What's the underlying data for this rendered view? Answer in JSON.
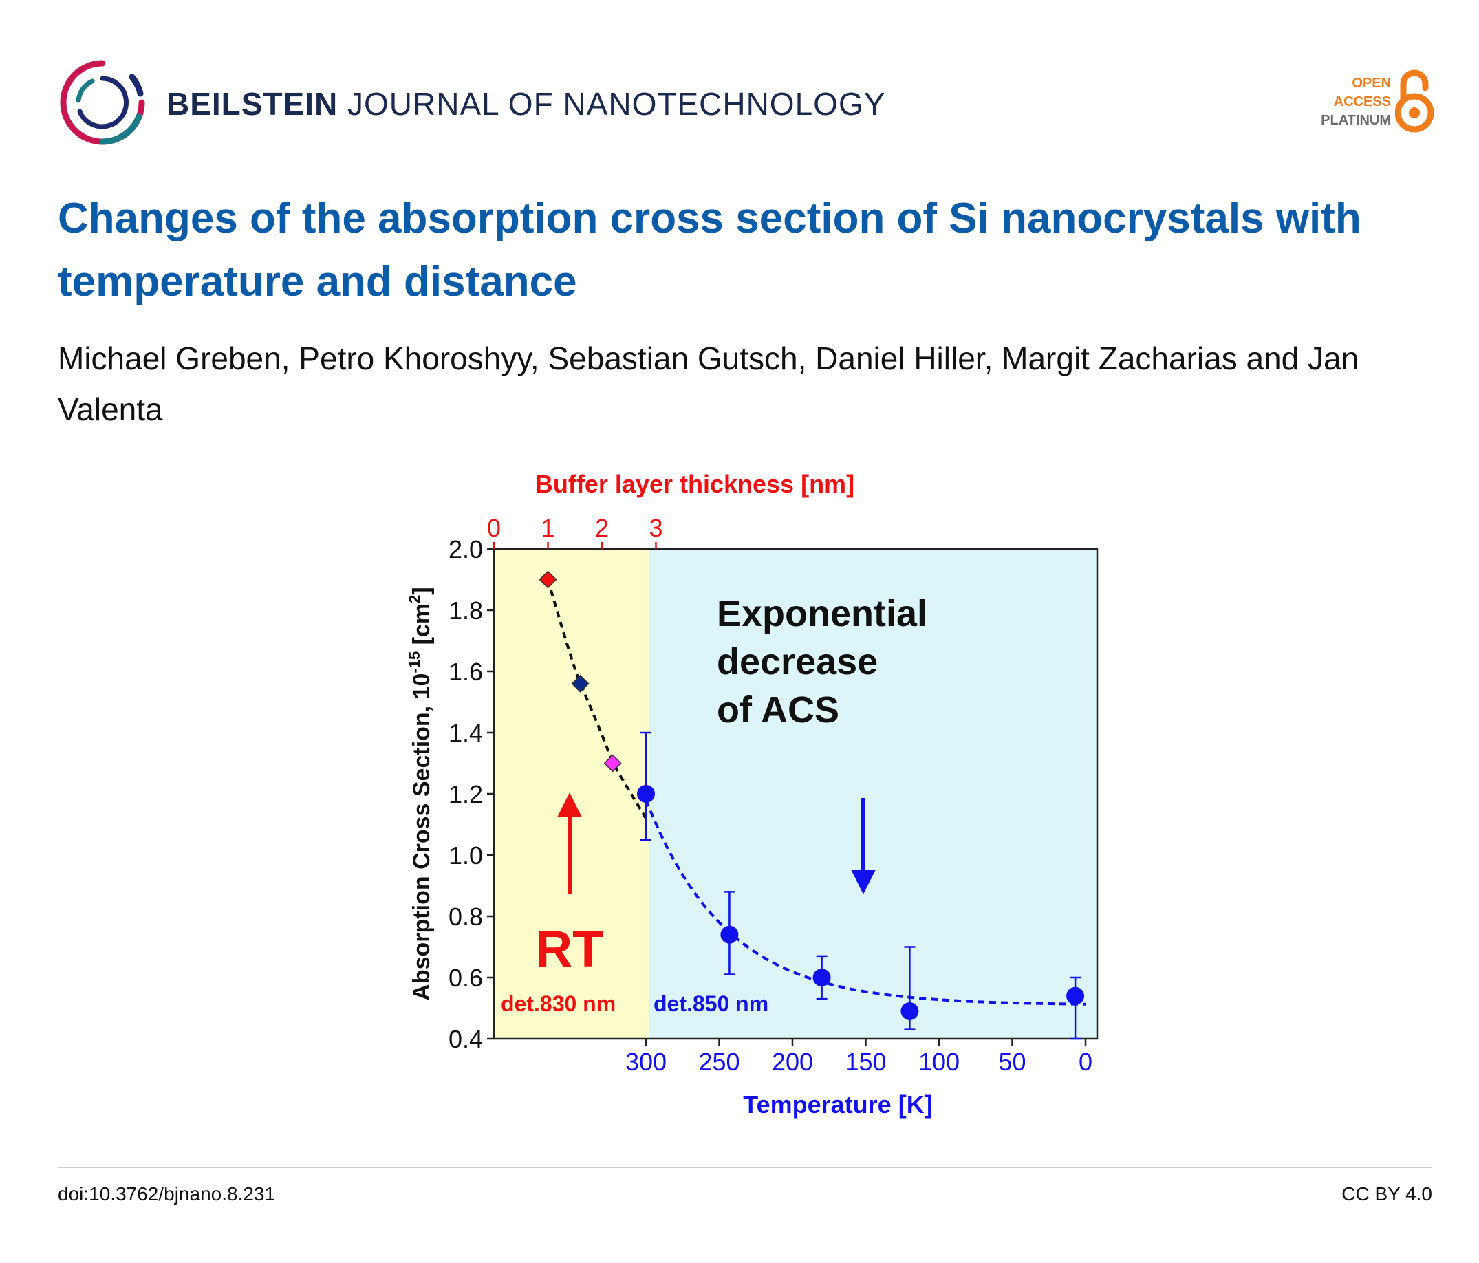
{
  "header": {
    "journal_bold": "BEILSTEIN",
    "journal_rest": "JOURNAL OF NANOTECHNOLOGY",
    "logo_icon": "beilstein-ring-logo",
    "badge": {
      "line1": "OPEN",
      "line2": "ACCESS",
      "line3": "PLATINUM",
      "icon": "open-lock-icon"
    }
  },
  "paper": {
    "title": "Changes of the absorption cross section of Si nanocrystals with temperature and distance",
    "authors": "Michael Greben, Petro Khoroshyy, Sebastian Gutsch, Daniel Hiller, Margit Zacharias and Jan Valenta"
  },
  "chart_data": {
    "type": "scatter",
    "top_axis": {
      "label": "Buffer layer thickness [nm]",
      "ticks": [
        "0",
        "1",
        "2",
        "3"
      ]
    },
    "bottom_axis": {
      "label": "Temperature [K]",
      "ticks": [
        "300",
        "250",
        "200",
        "150",
        "100",
        "50",
        "0"
      ]
    },
    "ylabel": "Absorption Cross Section, 10",
    "ylabel_exp": "-15",
    "ylabel_unit": " [cm",
    "ylabel_unit_exp": "2",
    "ylabel_end": "]",
    "ylim": [
      0.4,
      2.0
    ],
    "yticks": [
      "2.0",
      "1.8",
      "1.6",
      "1.4",
      "1.2",
      "1.0",
      "0.8",
      "0.6",
      "0.4"
    ],
    "grid": false,
    "regions": [
      {
        "label": "det.830 nm",
        "color": "#fffccc",
        "text_color": "#ee1111"
      },
      {
        "label": "det.850 nm",
        "color": "#dcf5f8",
        "text_color": "#1515dd"
      }
    ],
    "series": [
      {
        "marker": "diamond",
        "axis": "thickness_nm",
        "points": [
          {
            "x": 1.0,
            "y": 1.9,
            "color": "#ee1111"
          },
          {
            "x": 1.6,
            "y": 1.56,
            "color": "#0a2a8a"
          },
          {
            "x": 2.2,
            "y": 1.3,
            "color": "#ff33ff"
          }
        ]
      },
      {
        "marker": "circle",
        "axis": "temperature_K",
        "color": "#1111ee",
        "points": [
          {
            "x": 300,
            "y": 1.2,
            "err_lo": 0.15,
            "err_hi": 0.2
          },
          {
            "x": 243,
            "y": 0.74,
            "err_lo": 0.13,
            "err_hi": 0.14
          },
          {
            "x": 180,
            "y": 0.6,
            "err_lo": 0.07,
            "err_hi": 0.07
          },
          {
            "x": 120,
            "y": 0.49,
            "err_lo": 0.06,
            "err_hi": 0.21
          },
          {
            "x": 7,
            "y": 0.54,
            "err_lo": 0.14,
            "err_hi": 0.06
          }
        ]
      }
    ],
    "annotations": {
      "rt": {
        "text": "RT",
        "color": "#ee1111"
      },
      "exp": {
        "lines": [
          "Exponential",
          "decrease",
          "of ACS"
        ],
        "color": "#111111"
      },
      "arrow_up_color": "#ee1111",
      "arrow_down_color": "#1111ee"
    }
  },
  "footer": {
    "doi": "doi:10.3762/bjnano.8.231",
    "license": "CC BY 4.0"
  }
}
